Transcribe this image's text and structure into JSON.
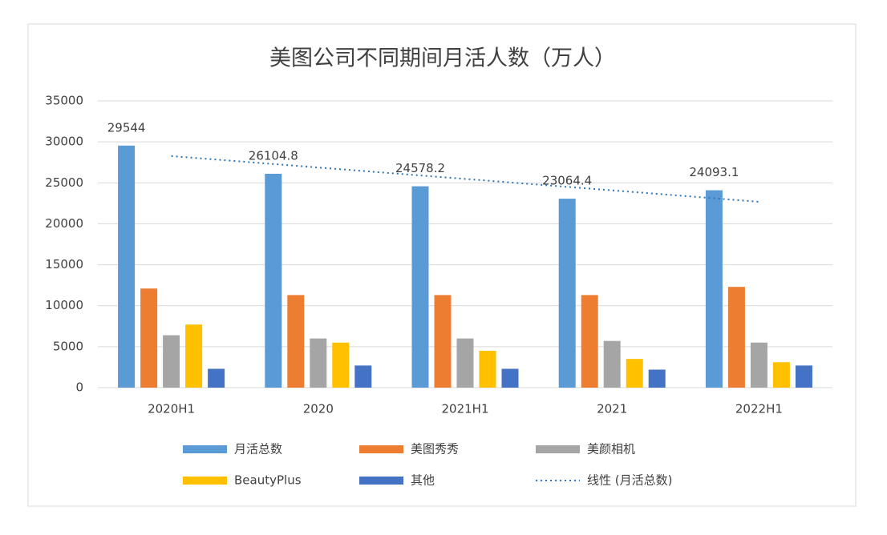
{
  "chart_data": {
    "type": "bar",
    "title": "美图公司不同期间月活人数（万人）",
    "categories": [
      "2020H1",
      "2020",
      "2021H1",
      "2021",
      "2022H1"
    ],
    "series": [
      {
        "name": "月活总数",
        "color": "#5b9bd5",
        "values": [
          29544,
          26104.8,
          24578.2,
          23064.4,
          24093.1
        ],
        "data_labels": true
      },
      {
        "name": "美图秀秀",
        "color": "#ed7d31",
        "values": [
          12100,
          11300,
          11300,
          11300,
          12300
        ]
      },
      {
        "name": "美颜相机",
        "color": "#a5a5a5",
        "values": [
          6400,
          6000,
          6000,
          5700,
          5500
        ]
      },
      {
        "name": "BeautyPlus",
        "color": "#ffc000",
        "values": [
          7700,
          5500,
          4500,
          3500,
          3100
        ]
      },
      {
        "name": "其他",
        "color": "#4472c4",
        "values": [
          2300,
          2700,
          2300,
          2200,
          2700
        ]
      }
    ],
    "trendline": {
      "name": "线性 (月活总数)",
      "type": "linear",
      "series": "月活总数",
      "color": "#2e75b6"
    },
    "ylim": [
      0,
      35000
    ],
    "yticks": [
      0,
      5000,
      10000,
      15000,
      20000,
      25000,
      30000,
      35000
    ],
    "grid": true
  }
}
